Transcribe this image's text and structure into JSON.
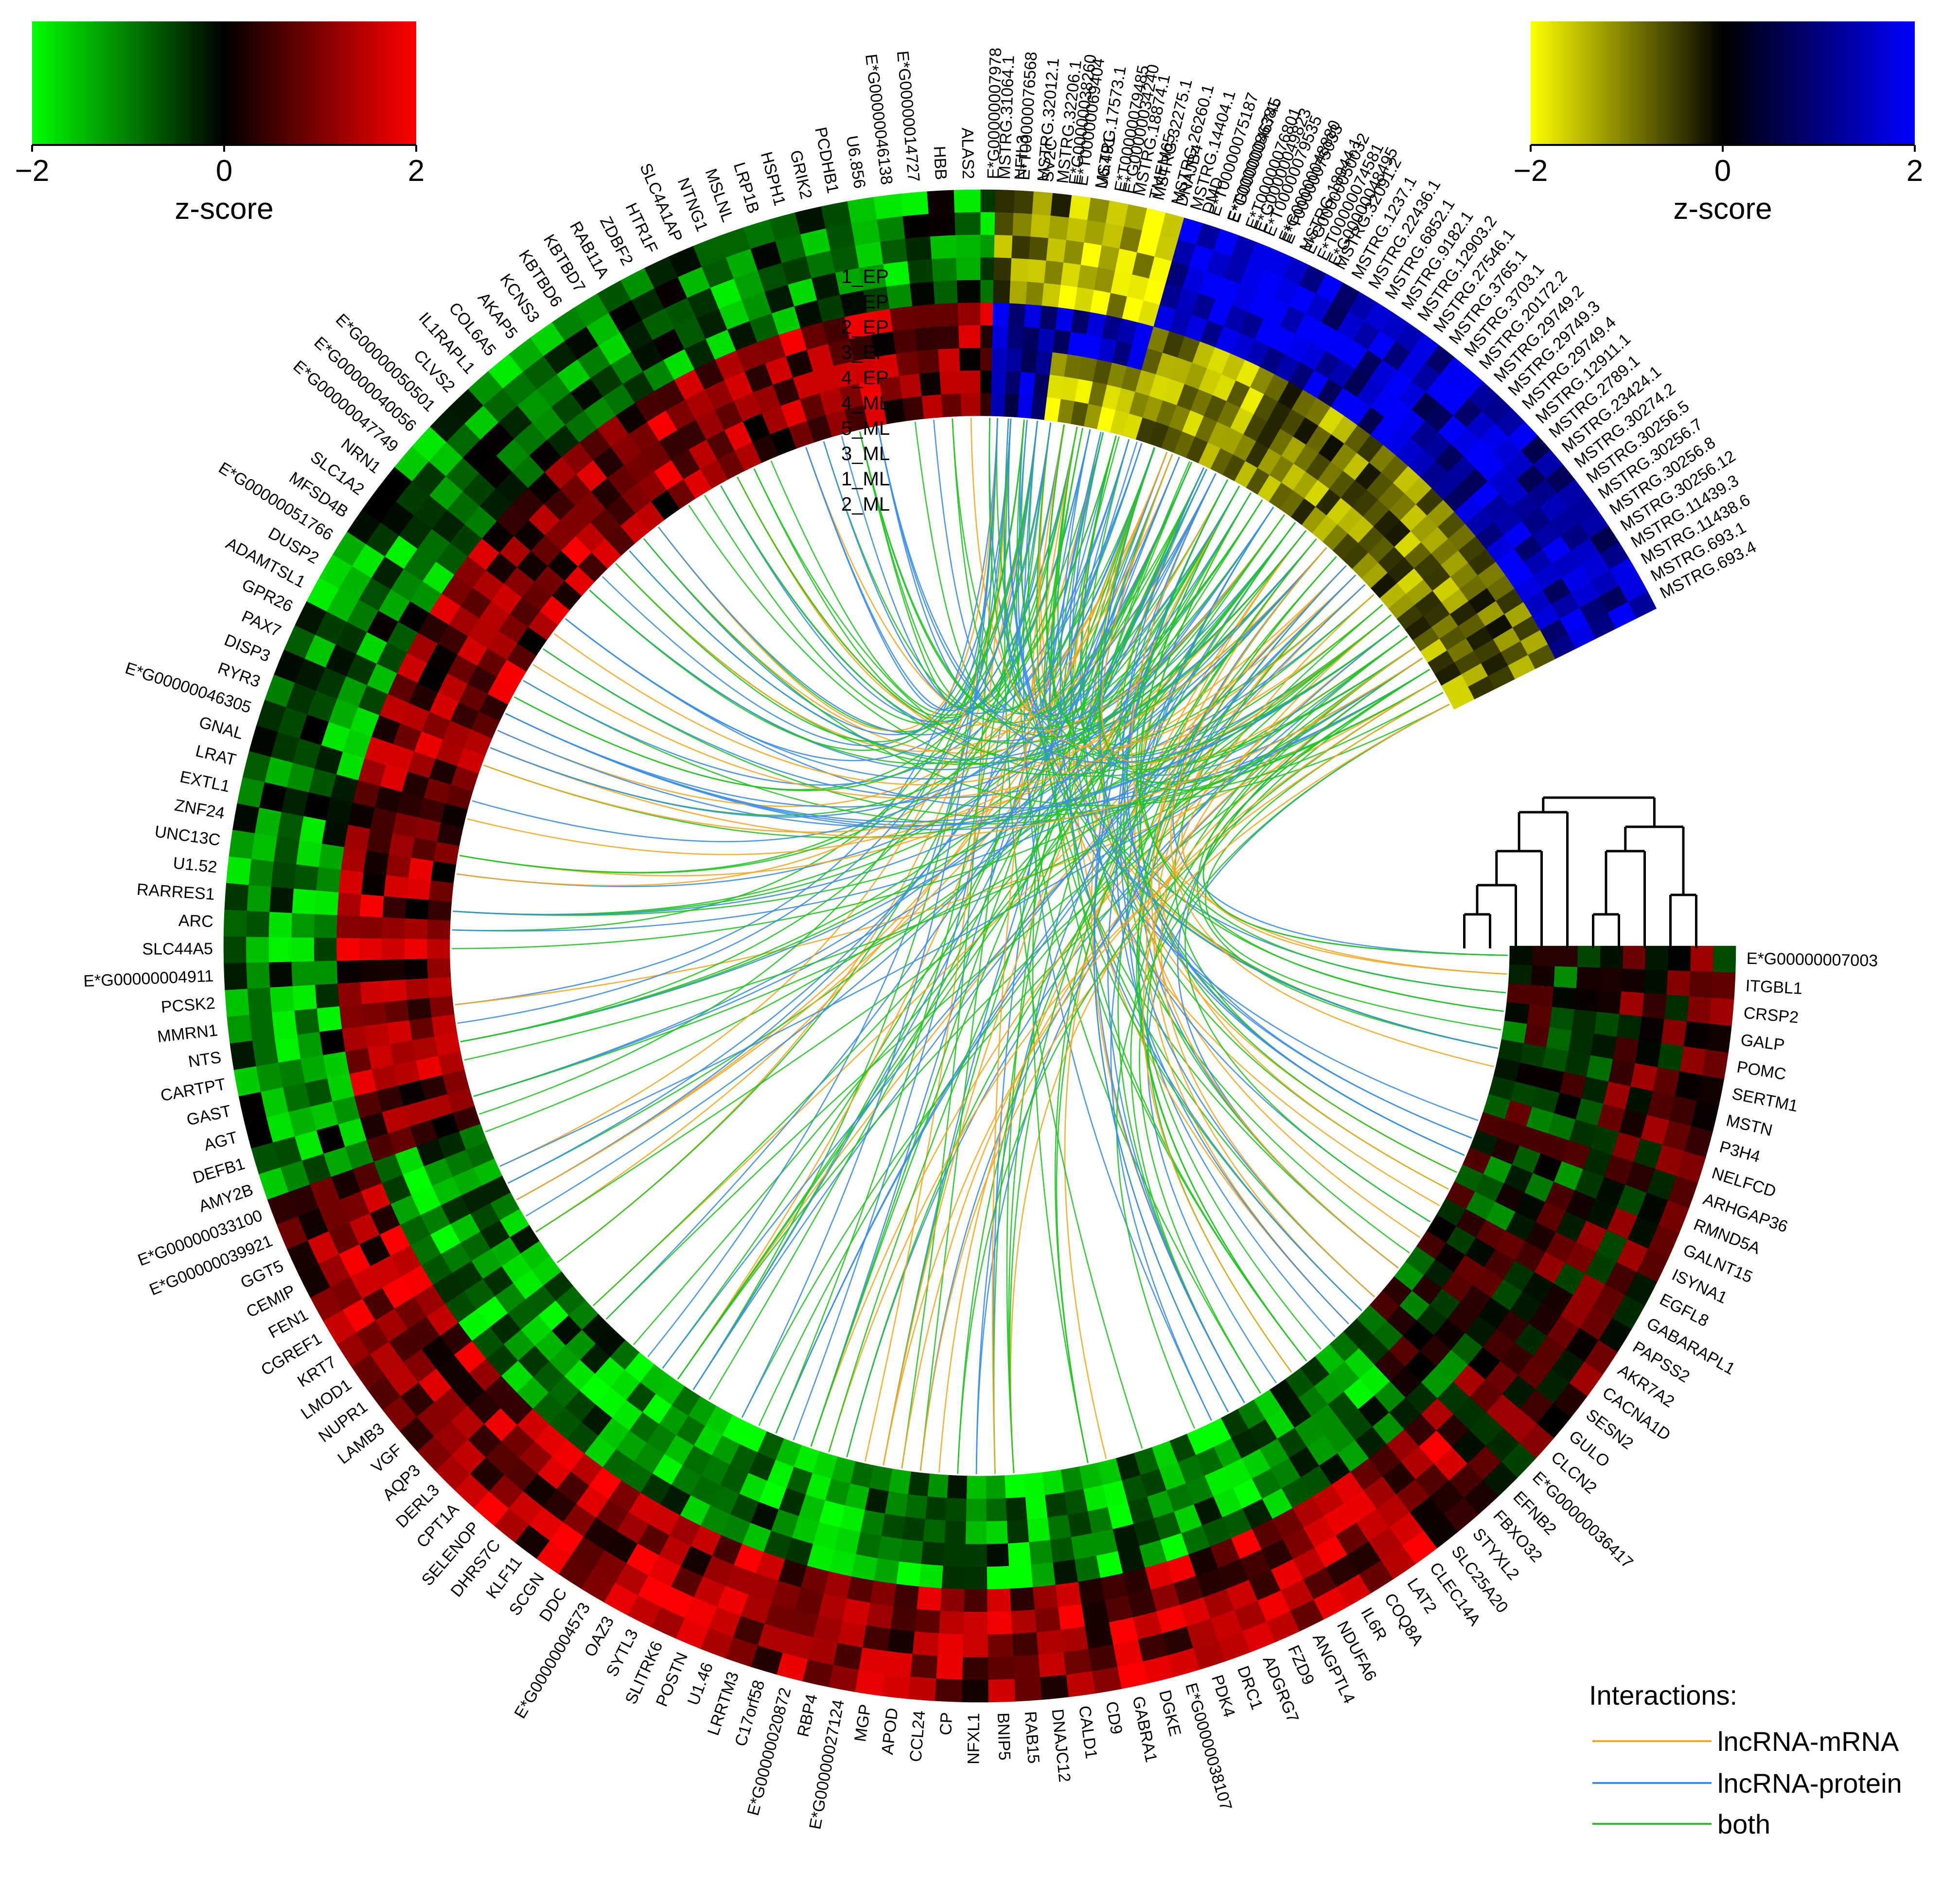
{
  "scale_bars": [
    {
      "name": "mrna-scale",
      "ticks": [
        "−2",
        "0",
        "2"
      ],
      "title": "z-score",
      "colors": [
        "#00ff00",
        "#000000",
        "#ff0000"
      ]
    },
    {
      "name": "lncrna-scale",
      "ticks": [
        "−2",
        "0",
        "2"
      ],
      "title": "z-score",
      "colors": [
        "#ffff00",
        "#000000",
        "#0000ff"
      ]
    }
  ],
  "samples": [
    "1_EP",
    "5_EP",
    "2_EP",
    "3_EP",
    "4_EP",
    "4_ML",
    "5_ML",
    "3_ML",
    "1_ML",
    "2_ML"
  ],
  "lncrnas": [
    "MSTRG.31064.1",
    "E*T00000076568",
    "MSTRG.32012.1",
    "MSTRG.32206.1",
    "E*T00000069404",
    "MSTRG.17573.1",
    "E*T00000079485",
    "MSTRG.18874.1",
    "MSTRG.32275.1",
    "MSTRG.26260.1",
    "MSTRG.14404.1",
    "E*T00000075187",
    "E*T00000086381",
    "E*T00000076801",
    "E*T00000079535",
    "E*T00000075033",
    "MSTRG.18944.1",
    "E*T00000074581",
    "MSTRG.32091.2",
    "MSTRG.1237.1",
    "MSTRG.22436.1",
    "MSTRG.6852.1",
    "MSTRG.9182.1",
    "MSTRG.12903.2",
    "MSTRG.27546.1",
    "MSTRG.3765.1",
    "MSTRG.3703.1",
    "MSTRG.20172.2",
    "MSTRG.29749.2",
    "MSTRG.29749.3",
    "MSTRG.29749.4",
    "MSTRG.12911.1",
    "MSTRG.2789.1",
    "MSTRG.23424.1",
    "MSTRG.30274.2",
    "MSTRG.30256.5",
    "MSTRG.30256.7",
    "MSTRG.30256.8",
    "MSTRG.30256.12",
    "MSTRG.11439.3",
    "MSTRG.11438.6",
    "MSTRG.693.1",
    "MSTRG.693.4"
  ],
  "genes": [
    "E*G00000007003",
    "ITGBL1",
    "CRSP2",
    "GALP",
    "POMC",
    "SERTM1",
    "MSTN",
    "P3H4",
    "NELFCD",
    "ARHGAP36",
    "RMND5A",
    "GALNT15",
    "ISYNA1",
    "EGFL8",
    "GABARAPL1",
    "PAPSS2",
    "AKR7A2",
    "CACNA1D",
    "SESN2",
    "GULO",
    "CLCN2",
    "E*G00000036417",
    "EFNB2",
    "FBXO32",
    "STYXL2",
    "SLC25A20",
    "CLEC14A",
    "LAT2",
    "COQ8A",
    "IL6R",
    "NDUFA6",
    "ANGPTL4",
    "FZD9",
    "ADGRG7",
    "DRC1",
    "PDK4",
    "E*G00000038107",
    "DGKE",
    "GABRA1",
    "CD9",
    "CALD1",
    "DNAJC12",
    "RAB15",
    "BNIP5",
    "NFXL1",
    "CP",
    "CCL24",
    "APOD",
    "MGP",
    "E*G00000027124",
    "RBP4",
    "E*G00000020872",
    "C17orf58",
    "LRRTM3",
    "U1.46",
    "POSTN",
    "SLITRK6",
    "SYTL3",
    "OAZ3",
    "E*G00000004573",
    "DDC",
    "SCGN",
    "KLF11",
    "DHRS7C",
    "SELENOP",
    "CPT1A",
    "DERL3",
    "AQP3",
    "VGF",
    "LAMB3",
    "NUPR1",
    "LMOD1",
    "KRT7",
    "CGREF1",
    "FEN1",
    "CEMIP",
    "GGT5",
    "E*G00000039921",
    "E*G00000033100",
    "AMY2B",
    "DEFB1",
    "AGT",
    "GAST",
    "CARTPT",
    "NTS",
    "MMRN1",
    "PCSK2",
    "E*G00000004911",
    "SLC44A5",
    "ARC",
    "RARRES1",
    "U1.52",
    "UNC13C",
    "ZNF24",
    "EXTL1",
    "LRAT",
    "GNAL",
    "E*G00000046305",
    "RYR3",
    "DISP3",
    "PAX7",
    "GPR26",
    "ADAMTSL1",
    "DUSP2",
    "E*G00000051766",
    "MFSD4B",
    "SLC1A2",
    "NRN1",
    "E*G00000047749",
    "E*G00000040056",
    "E*G00000050501",
    "CLVS2",
    "IL1RAPL1",
    "COL6A5",
    "AKAP5",
    "KCNS3",
    "KBTBD6",
    "KBTBD7",
    "RAB11A",
    "ZDBF2",
    "HTR1F",
    "SLC4A1AP",
    "NTNG1",
    "MSLNL",
    "LRP1B",
    "HSPH1",
    "GRIK2",
    "PCDHB1",
    "U6.856",
    "E*G00000046138",
    "E*G00000014727",
    "HBB",
    "ALAS2",
    "E*G00000007978",
    "NFIL3",
    "SV2C",
    "E*G00000038260",
    "U6.491",
    "E*G00000034240",
    "TMEM65",
    "DNAJB4",
    "DMD",
    "E*G00000046745",
    "E*G00000049823",
    "E*G00000048880",
    "E*G00000050032",
    "E*G00000048495"
  ],
  "legend": {
    "title": "Interactions:",
    "items": [
      {
        "label": "lncRNA-mRNA",
        "color": "#f5a623"
      },
      {
        "label": "lncRNA-protein",
        "color": "#3a8ee6"
      },
      {
        "label": "both",
        "color": "#22c422"
      }
    ]
  }
}
